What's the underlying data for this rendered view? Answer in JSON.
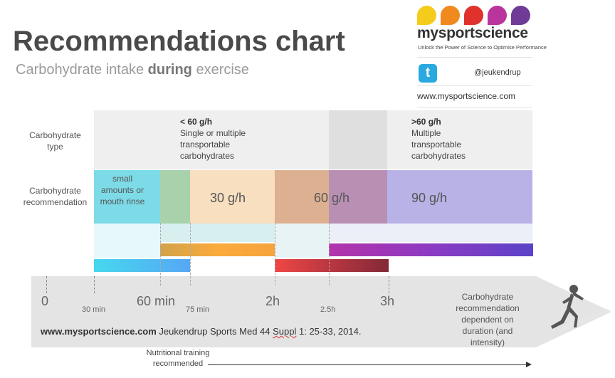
{
  "title": "Recommendations chart",
  "subtitle": {
    "pre": "Carbohydrate intake ",
    "bold": "during",
    "post": " exercise"
  },
  "brand": {
    "name": "mysportscience",
    "tagline": "Unlock the Power of Science to Optimise Performance",
    "twitter_handle": "@jeukendrup",
    "website": "www.mysportscience.com",
    "dot_colors": [
      "#f5cc1b",
      "#f08a1e",
      "#e0312c",
      "#b9359d",
      "#6f3b97"
    ]
  },
  "rows": {
    "type_label": "Carbohydrate type",
    "rec_label": "Carbohydrate recommendation"
  },
  "type_blocks": {
    "low": {
      "heading": "< 60 g/h",
      "text": "Single or multiple transportable carbohydrates"
    },
    "high": {
      "heading": ">60 g/h",
      "text": "Multiple transportable carbohydrates"
    }
  },
  "recommendations": {
    "small": "small amounts or mouth rinse",
    "r30": "30 g/h",
    "r60": "60 g/h",
    "r90": "90 g/h"
  },
  "axis": {
    "ticks_major": [
      "0",
      "60 min",
      "2h",
      "3h"
    ],
    "ticks_minor": [
      "30 min",
      "75 min",
      "2.5h"
    ]
  },
  "citation": {
    "site": "www.mysportscience.com",
    "pre": " Jeukendrup Sports Med 44 ",
    "sup": "Suppl",
    "post": " 1: 25-33, 2014."
  },
  "note": "Carbohydrate recommendation dependent on duration (and intensity)",
  "nutritional_training": "Nutritional training recommended",
  "colors": {
    "cyan": "#7ddbe8",
    "green": "#a8d1ac",
    "peach": "#f7dfbf",
    "orange_brown": "#ddb092",
    "mauve": "#b98fb4",
    "purple": "#b9b2e6"
  }
}
